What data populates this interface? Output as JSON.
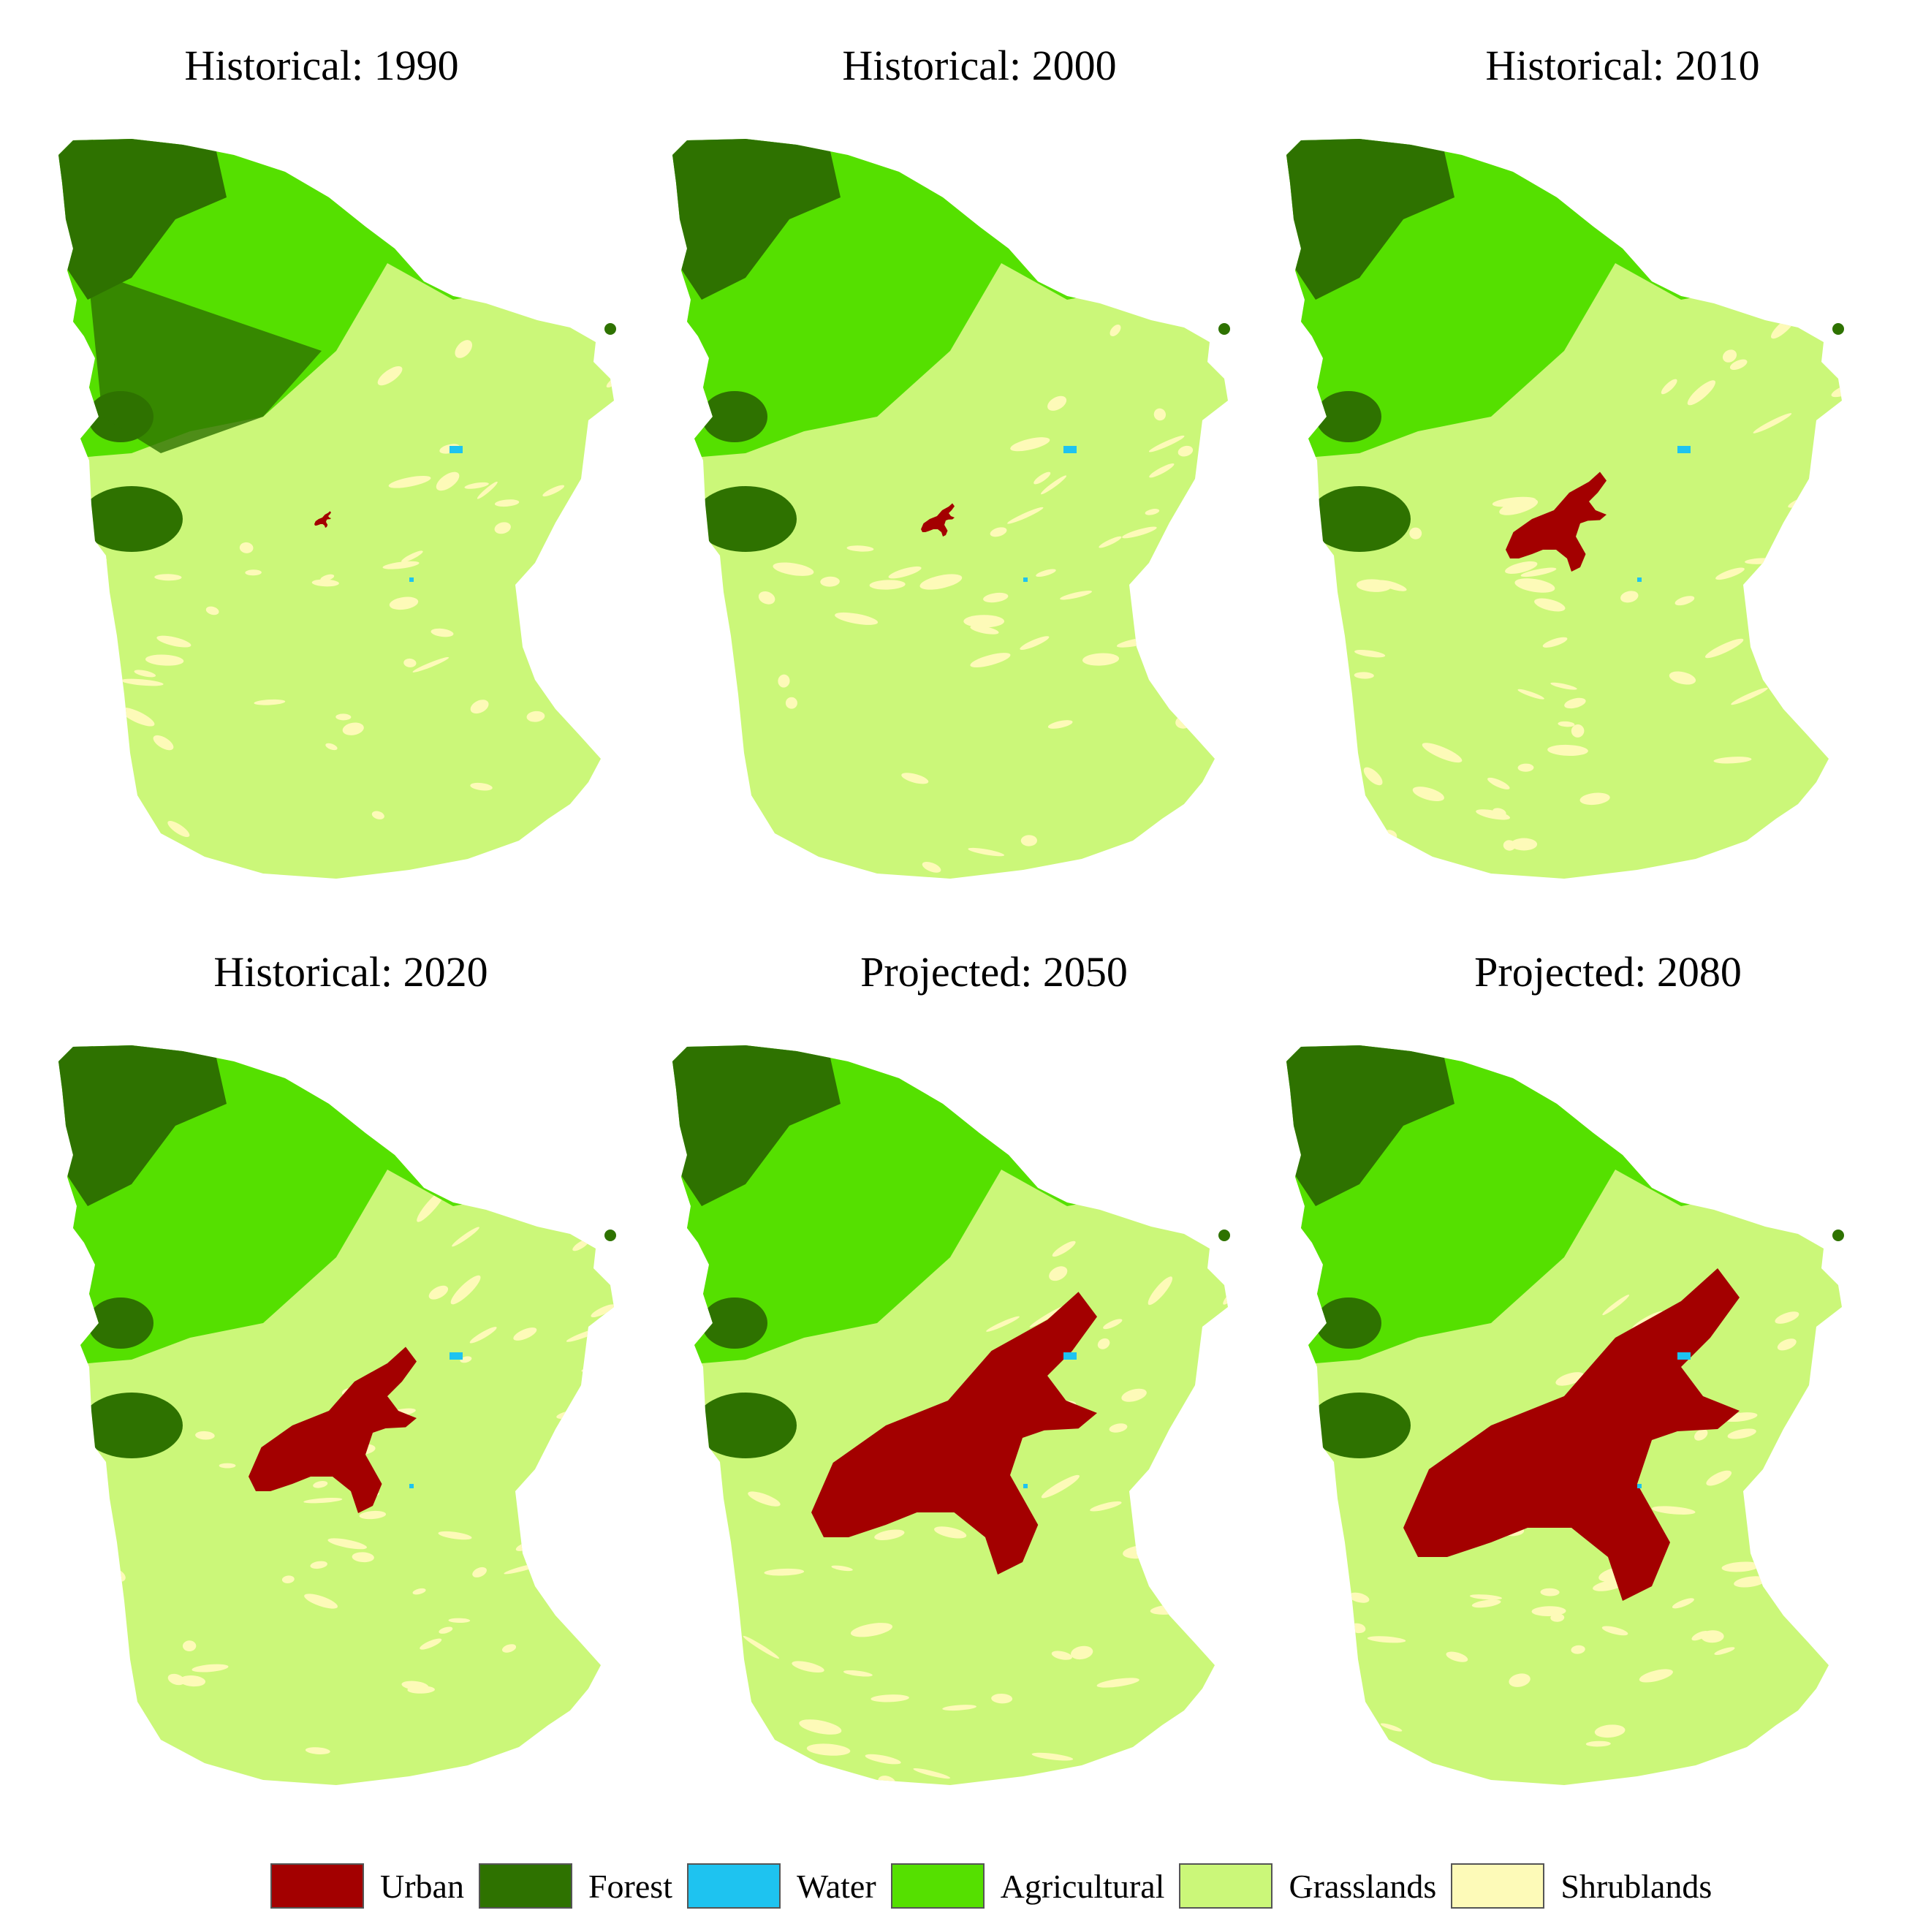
{
  "colors": {
    "urban": "#a30000",
    "forest": "#2e7200",
    "water": "#1ec3f0",
    "agricultural": "#55e000",
    "grasslands": "#cbf779",
    "shrublands": "#fdfab8"
  },
  "panels": [
    {
      "title": "Historical: 1990",
      "urban_level": 0.05
    },
    {
      "title": "Historical: 2000",
      "urban_level": 0.1
    },
    {
      "title": "Historical: 2010",
      "urban_level": 0.3
    },
    {
      "title": "Historical: 2020",
      "urban_level": 0.5
    },
    {
      "title": "Projected: 2050",
      "urban_level": 0.85
    },
    {
      "title": "Projected: 2080",
      "urban_level": 1.0
    }
  ],
  "legend": [
    {
      "label": "Urban",
      "color_key": "urban"
    },
    {
      "label": "Forest",
      "color_key": "forest"
    },
    {
      "label": "Water",
      "color_key": "water"
    },
    {
      "label": "Agricultural",
      "color_key": "agricultural"
    },
    {
      "label": "Grasslands",
      "color_key": "grasslands"
    },
    {
      "label": "Shrublands",
      "color_key": "shrublands"
    }
  ]
}
